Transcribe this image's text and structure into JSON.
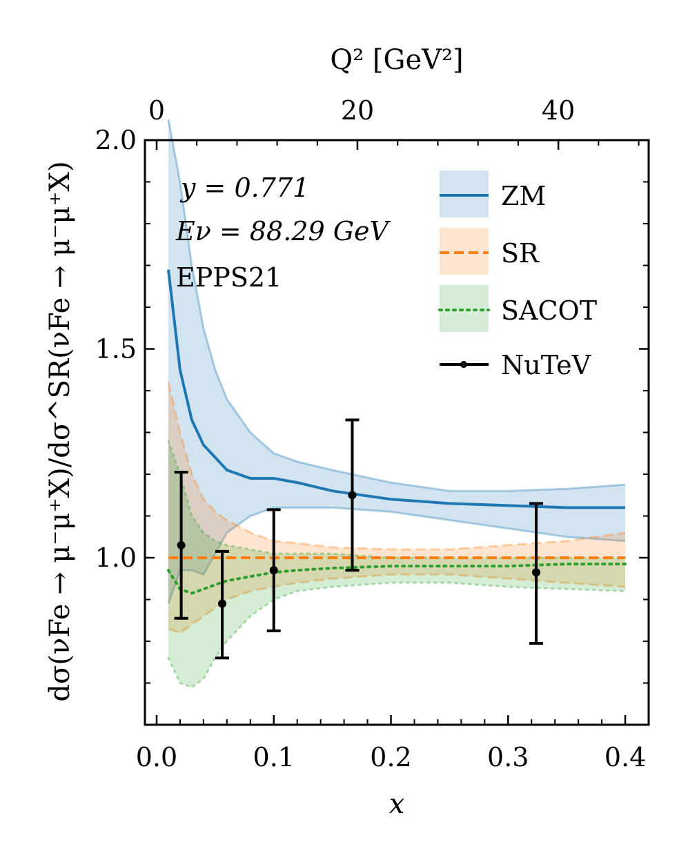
{
  "chart_data": {
    "type": "line",
    "title": "",
    "xlabel": "x",
    "ylabel": "dσ(νFe → μ⁻μ⁺X)/dσ^SR(νFe → μ⁻μ⁺X)",
    "top_xlabel": "Q² [GeV²]",
    "xlim": [
      -0.01,
      0.42
    ],
    "ylim": [
      0.6,
      2.0
    ],
    "x_ticks": [
      "0.0",
      "0.1",
      "0.2",
      "0.3",
      "0.4"
    ],
    "x_tick_values": [
      0.0,
      0.1,
      0.2,
      0.3,
      0.4
    ],
    "y_ticks": [
      "1.0",
      "1.5",
      "2.0"
    ],
    "y_tick_values": [
      1.0,
      1.5,
      2.0
    ],
    "top_ticks": [
      "0",
      "20",
      "40"
    ],
    "top_tick_x_values": [
      0.0,
      0.1714,
      0.3429
    ],
    "annotations": [
      "y = 0.771",
      "Eν = 88.29 GeV",
      "EPPS21"
    ],
    "legend_position": "top-right",
    "series": [
      {
        "name": "ZM",
        "color": "#1f77b4",
        "line_style": "solid",
        "x": [
          0.01,
          0.02,
          0.03,
          0.04,
          0.05,
          0.06,
          0.08,
          0.1,
          0.12,
          0.15,
          0.2,
          0.25,
          0.3,
          0.35,
          0.4
        ],
        "y": [
          1.69,
          1.45,
          1.33,
          1.27,
          1.24,
          1.21,
          1.19,
          1.19,
          1.18,
          1.16,
          1.14,
          1.13,
          1.125,
          1.12,
          1.12
        ],
        "upper": [
          2.05,
          1.9,
          1.7,
          1.55,
          1.45,
          1.38,
          1.3,
          1.25,
          1.23,
          1.21,
          1.18,
          1.16,
          1.16,
          1.165,
          1.175
        ],
        "lower": [
          0.89,
          0.97,
          0.97,
          0.96,
          1.01,
          1.06,
          1.1,
          1.12,
          1.12,
          1.12,
          1.11,
          1.09,
          1.07,
          1.05,
          1.04
        ]
      },
      {
        "name": "SR",
        "color": "#ff7f0e",
        "line_style": "dashed",
        "x": [
          0.01,
          0.02,
          0.03,
          0.04,
          0.05,
          0.06,
          0.08,
          0.1,
          0.12,
          0.15,
          0.2,
          0.25,
          0.3,
          0.35,
          0.4
        ],
        "y": [
          1.0,
          1.0,
          1.0,
          1.0,
          1.0,
          1.0,
          1.0,
          1.0,
          1.0,
          1.0,
          1.0,
          1.0,
          1.0,
          1.0,
          1.0
        ],
        "upper": [
          1.42,
          1.3,
          1.2,
          1.14,
          1.11,
          1.09,
          1.06,
          1.04,
          1.035,
          1.025,
          1.02,
          1.02,
          1.03,
          1.04,
          1.06
        ],
        "lower": [
          0.83,
          0.82,
          0.84,
          0.86,
          0.88,
          0.9,
          0.92,
          0.93,
          0.94,
          0.95,
          0.96,
          0.96,
          0.95,
          0.94,
          0.93
        ]
      },
      {
        "name": "SACOT",
        "color": "#2ca02c",
        "line_style": "dotted",
        "x": [
          0.01,
          0.02,
          0.03,
          0.04,
          0.05,
          0.06,
          0.08,
          0.1,
          0.12,
          0.15,
          0.2,
          0.25,
          0.3,
          0.35,
          0.4
        ],
        "y": [
          0.97,
          0.925,
          0.915,
          0.925,
          0.935,
          0.945,
          0.955,
          0.965,
          0.97,
          0.975,
          0.98,
          0.98,
          0.98,
          0.985,
          0.985
        ],
        "upper": [
          1.28,
          1.2,
          1.1,
          1.06,
          1.04,
          1.03,
          1.02,
          1.01,
          1.01,
          1.01,
          1.0,
          1.0,
          1.0,
          1.0,
          1.0
        ],
        "lower": [
          0.76,
          0.7,
          0.69,
          0.71,
          0.76,
          0.8,
          0.86,
          0.9,
          0.92,
          0.93,
          0.94,
          0.94,
          0.93,
          0.925,
          0.92
        ]
      },
      {
        "name": "NuTeV",
        "color": "#000000",
        "line_style": "errorbar",
        "x": [
          0.021,
          0.056,
          0.1,
          0.167,
          0.324
        ],
        "y": [
          1.03,
          0.89,
          0.97,
          1.15,
          0.965
        ],
        "upper": [
          1.205,
          1.015,
          1.115,
          1.33,
          1.13
        ],
        "lower": [
          0.855,
          0.76,
          0.825,
          0.97,
          0.795
        ]
      }
    ]
  }
}
